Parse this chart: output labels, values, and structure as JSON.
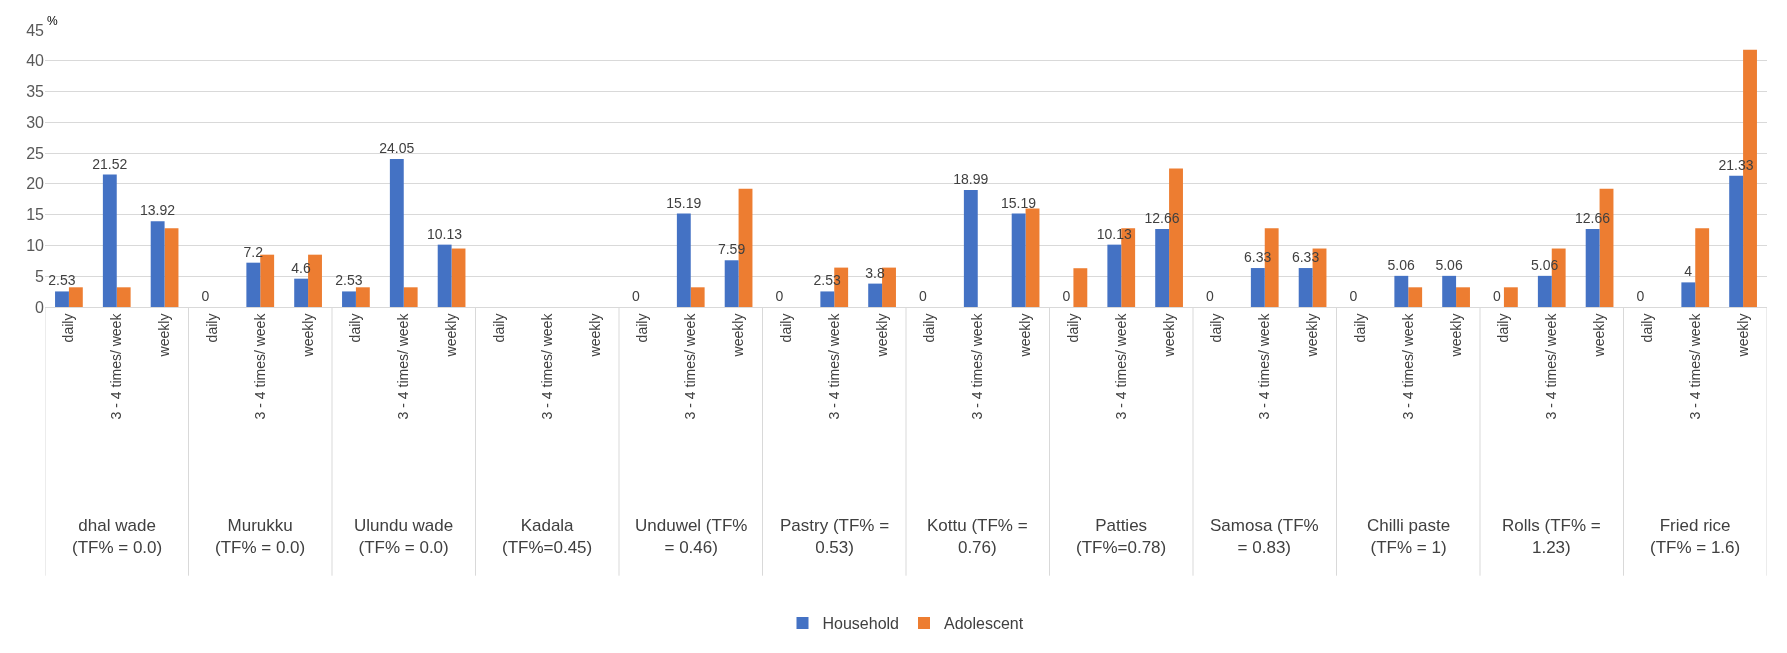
{
  "chart_data": {
    "type": "bar",
    "ylabel": "%",
    "categories": [
      "daily",
      "3 - 4 times/ week",
      "weekly",
      "daily",
      "3 - 4 times/ week",
      "weekly",
      "daily",
      "3 - 4 times/ week",
      "weekly",
      "daily",
      "3 - 4 times/ week",
      "weekly",
      "daily",
      "3 - 4 times/ week",
      "weekly",
      "daily",
      "3 - 4 times/ week",
      "weekly",
      "daily",
      "3 - 4 times/ week",
      "weekly",
      "daily",
      "3 - 4 times/ week",
      "weekly",
      "daily",
      "3 - 4 times/ week",
      "weekly",
      "daily",
      "3 - 4 times/ week",
      "weekly",
      "daily",
      "3 - 4 times/ week",
      "weekly",
      "daily",
      "3 - 4 times/ week",
      "weekly"
    ],
    "annotations": [
      "dhal wade\n(TF% = 0.0)",
      "Murukku\n(TF% = 0.0)",
      "Ulundu wade\n(TF% = 0.0)",
      "Kadala\n(TF%=0.45)",
      "Unduwel (TF%\n= 0.46)",
      "Pastry (TF% =\n0.53)",
      "Kottu (TF% =\n0.76)",
      "Patties\n(TF%=0.78)",
      "Samosa (TF%\n= 0.83)",
      "Chilli paste\n(TF% = 1)",
      "Rolls (TF% =\n1.23)",
      "Fried rice\n(TF% = 1.6)"
    ],
    "ylim": [
      0,
      45
    ],
    "yticks": [
      0,
      5,
      10,
      15,
      20,
      25,
      30,
      35,
      40,
      45
    ],
    "grid": "y",
    "legend": "bottom",
    "series": [
      {
        "name": "Household",
        "color": "#4472c4",
        "values": [
          2.53,
          21.52,
          13.92,
          0,
          7.2,
          4.6,
          2.53,
          24.05,
          10.13,
          null,
          null,
          null,
          0,
          15.19,
          7.59,
          0,
          2.53,
          3.8,
          0,
          18.99,
          15.19,
          0,
          10.13,
          12.66,
          0,
          6.33,
          6.33,
          0,
          5.06,
          5.06,
          0,
          5.06,
          12.66,
          0,
          4,
          21.33
        ],
        "value_labels": [
          "2.53",
          "21.52",
          "13.92",
          "0",
          "7.2",
          "4.6",
          "2.53",
          "24.05",
          "10.13",
          null,
          null,
          null,
          "0",
          "15.19",
          "7.59",
          "0",
          "2.53",
          "3.8",
          "0",
          "18.99",
          "15.19",
          "0",
          "10.13",
          "12.66",
          "0",
          "6.33",
          "6.33",
          "0",
          "5.06",
          "5.06",
          "0",
          "5.06",
          "12.66",
          "0",
          "4",
          "21.33"
        ]
      },
      {
        "name": "Adolescent",
        "color": "#ed7d31",
        "values": [
          3.2,
          3.2,
          12.8,
          0,
          8.5,
          8.5,
          3.2,
          3.2,
          9.5,
          null,
          null,
          null,
          0,
          3.2,
          19.2,
          0,
          6.4,
          6.4,
          0,
          0,
          16.0,
          6.3,
          12.8,
          22.5,
          0,
          12.8,
          9.5,
          0,
          3.2,
          3.2,
          3.2,
          9.5,
          19.2,
          0,
          12.8,
          41.8
        ]
      }
    ]
  }
}
